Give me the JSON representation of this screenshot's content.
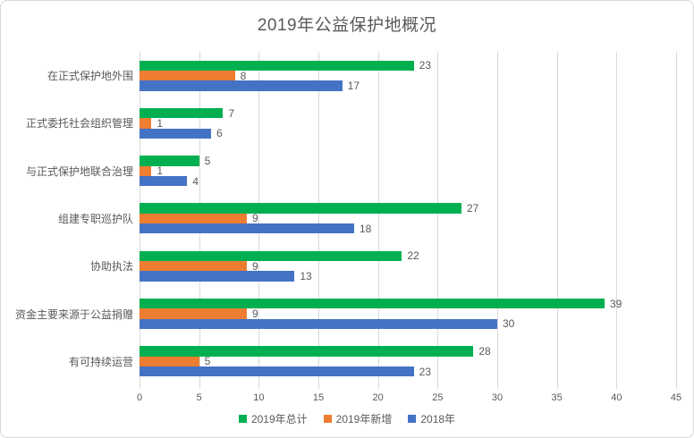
{
  "title": "2019年公益保护地概况",
  "chart_data": {
    "type": "bar",
    "orientation": "horizontal",
    "title": "2019年公益保护地概况",
    "categories": [
      "在正式保护地外围",
      "正式委托社会组织管理",
      "与正式保护地联合治理",
      "组建专职巡护队",
      "协助执法",
      "资金主要来源于公益捐赠",
      "有可持续运营"
    ],
    "series": [
      {
        "name": "2019年总计",
        "color": "#00B050",
        "values": [
          23,
          7,
          5,
          27,
          22,
          39,
          28
        ]
      },
      {
        "name": "2019年新增",
        "color": "#ED7D31",
        "values": [
          8,
          1,
          1,
          9,
          9,
          9,
          5
        ]
      },
      {
        "name": "2018年",
        "color": "#4472C4",
        "values": [
          17,
          6,
          4,
          18,
          13,
          30,
          23
        ]
      }
    ],
    "xlim": [
      0,
      45
    ],
    "x_ticks": [
      0,
      5,
      10,
      15,
      20,
      25,
      30,
      35,
      40,
      45
    ],
    "grid": true,
    "data_labels": true,
    "legend_position": "bottom",
    "colors": {
      "gridline": "#d9d9d9",
      "text": "#595959",
      "border": "#d9d9d9"
    }
  }
}
